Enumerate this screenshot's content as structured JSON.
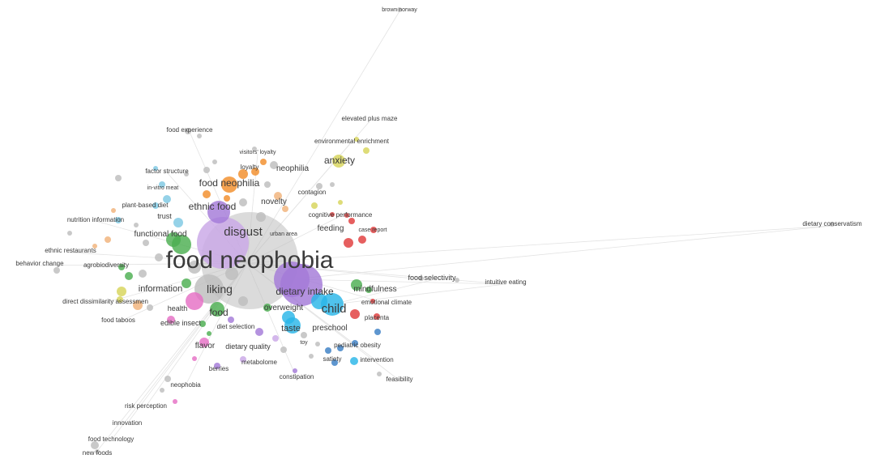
{
  "map": {
    "palette": {
      "grey": "#bdbdbd",
      "blue": "#7ec8e3",
      "orange": "#f28e2b",
      "yellow": "#d7d45a",
      "green": "#4caf50",
      "red": "#e03c3c",
      "pink": "#e56fc4",
      "purple": "#a47ad8",
      "cyan": "#29b6e8",
      "navy": "#3b7fc4",
      "peach": "#f0b27a",
      "lilac": "#c9a7e6",
      "link": "#e3e3e3"
    },
    "terms": [
      {
        "key": "food-neophobia",
        "label": "food neophobia"
      },
      {
        "key": "disgust",
        "label": "disgust"
      },
      {
        "key": "liking",
        "label": "liking"
      },
      {
        "key": "child",
        "label": "child"
      },
      {
        "key": "dietary-intake",
        "label": "dietary intake"
      },
      {
        "key": "food-neophilia",
        "label": "food neophilia"
      },
      {
        "key": "ethnic-food",
        "label": "ethnic food"
      },
      {
        "key": "anxiety",
        "label": "anxiety"
      },
      {
        "key": "food",
        "label": "food"
      },
      {
        "key": "taste",
        "label": "taste"
      },
      {
        "key": "preschool",
        "label": "preschool"
      },
      {
        "key": "information",
        "label": "information"
      },
      {
        "key": "mindfulness",
        "label": "mindfulness"
      },
      {
        "key": "feeding",
        "label": "feeding"
      },
      {
        "key": "novelty",
        "label": "novelty"
      },
      {
        "key": "neophilia",
        "label": "neophilia"
      },
      {
        "key": "functional-food",
        "label": "functional food"
      },
      {
        "key": "overweight",
        "label": "overweight"
      },
      {
        "key": "flavor",
        "label": "flavor"
      },
      {
        "key": "dietary-quality",
        "label": "dietary quality"
      },
      {
        "key": "health",
        "label": "health"
      },
      {
        "key": "edible-insect",
        "label": "edible insect"
      },
      {
        "key": "diet-selection",
        "label": "diet selection"
      },
      {
        "key": "food-selectivity",
        "label": "food selectivity"
      },
      {
        "key": "intuitive-eating",
        "label": "intuitive eating"
      },
      {
        "key": "emotional-climate",
        "label": "emotional climate"
      },
      {
        "key": "placenta",
        "label": "placenta"
      },
      {
        "key": "pediatric-obesity",
        "label": "pediatric obesity"
      },
      {
        "key": "intervention",
        "label": "intervention"
      },
      {
        "key": "satiety",
        "label": "satiety"
      },
      {
        "key": "toy",
        "label": "toy"
      },
      {
        "key": "metabolome",
        "label": "metabolome"
      },
      {
        "key": "berries",
        "label": "berries"
      },
      {
        "key": "constipation",
        "label": "constipation"
      },
      {
        "key": "feasibility",
        "label": "feasibility"
      },
      {
        "key": "neophobia",
        "label": "neophobia"
      },
      {
        "key": "risk-perception",
        "label": "risk perception"
      },
      {
        "key": "innovation",
        "label": "innovation"
      },
      {
        "key": "food-technology",
        "label": "food technology"
      },
      {
        "key": "new-foods",
        "label": "new foods"
      },
      {
        "key": "food-taboos",
        "label": "food taboos"
      },
      {
        "key": "direct-dissimilarity",
        "label": "direct dissimilarity assessmen"
      },
      {
        "key": "behavior-change",
        "label": "behavior change"
      },
      {
        "key": "agrobiodiversity",
        "label": "agrobiodiversity"
      },
      {
        "key": "ethnic-restaurants",
        "label": "ethnic restaurants"
      },
      {
        "key": "nutrition-information",
        "label": "nutrition information"
      },
      {
        "key": "trust",
        "label": "trust"
      },
      {
        "key": "plant-based-diet",
        "label": "plant-based diet"
      },
      {
        "key": "in-vitro-meat",
        "label": "in-vitro meat"
      },
      {
        "key": "factor-structure",
        "label": "factor structure"
      },
      {
        "key": "food-experience",
        "label": "food experience"
      },
      {
        "key": "visitors-loyalty",
        "label": "visitors' loyalty"
      },
      {
        "key": "loyalty",
        "label": "loyalty"
      },
      {
        "key": "contagion",
        "label": "contagion"
      },
      {
        "key": "cognitive-performance",
        "label": "cognitive performance"
      },
      {
        "key": "urban-area",
        "label": "urban area"
      },
      {
        "key": "case-report",
        "label": "case report"
      },
      {
        "key": "environmental-enrichment",
        "label": "environmental enrichment"
      },
      {
        "key": "elevated-plus-maze",
        "label": "elevated plus maze"
      },
      {
        "key": "brown-norway",
        "label": "brown norway"
      },
      {
        "key": "dietary-conservatism",
        "label": "dietary conservatism"
      }
    ]
  }
}
